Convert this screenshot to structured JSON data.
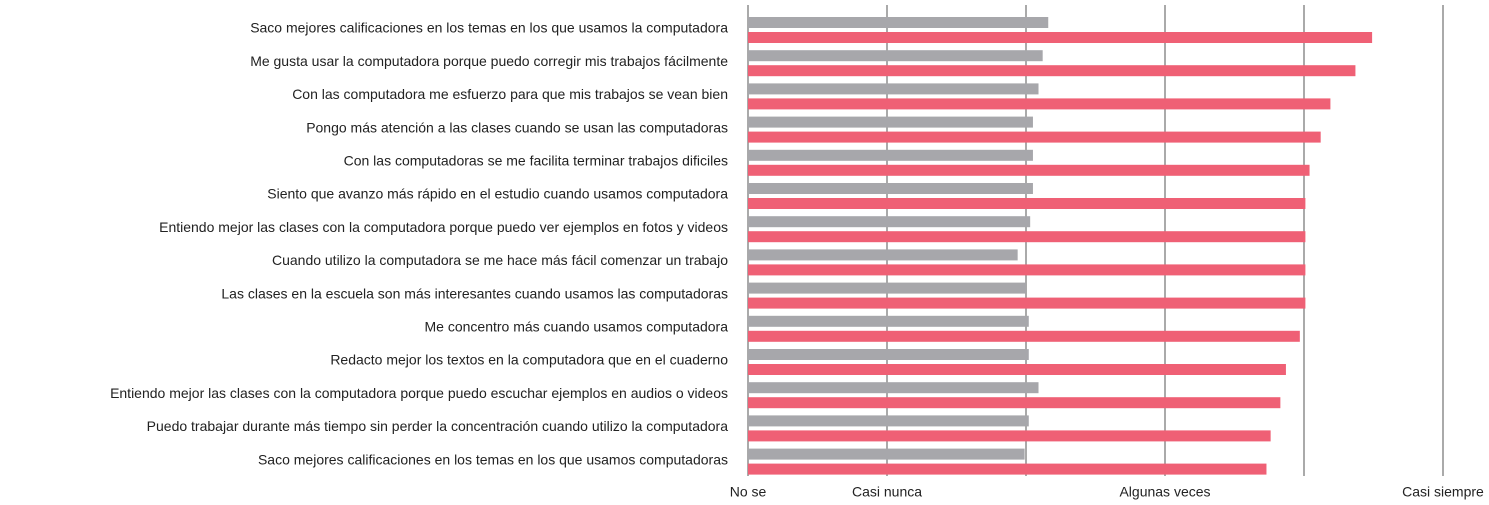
{
  "chart_data": {
    "type": "hbar",
    "categories": [
      "Saco mejores calificaciones en los temas en los que usamos la computadora",
      "Me gusta usar la computadora porque puedo corregir mis trabajos fácilmente",
      "Con las computadora me esfuerzo para que mis trabajos se vean bien",
      "Pongo más atención a las clases cuando se usan las computadoras",
      "Con las computadoras se me facilita terminar trabajos dificiles",
      "Siento que avanzo más rápido en el estudio cuando usamos computadora",
      "Entiendo mejor las clases con la computadora porque puedo ver ejemplos en fotos y videos",
      "Cuando utilizo la computadora se me hace más fácil comenzar un trabajo",
      "Las clases en la escuela son más interesantes cuando usamos las computadoras",
      "Me concentro más cuando usamos computadora",
      "Redacto mejor los textos en la computadora que en el cuaderno",
      "Entiendo mejor las clases con la computadora porque puedo escuchar ejemplos en audios o videos",
      "Puedo trabajar durante más tiempo sin perder la concentración cuando utilizo la computadora",
      "Saco mejores calificaciones en los temas en los que usamos computadoras"
    ],
    "series": [
      {
        "color": "#a7a7ab",
        "values": [
          2.16,
          2.12,
          2.09,
          2.05,
          2.05,
          2.05,
          2.03,
          1.94,
          2.0,
          2.02,
          2.02,
          2.09,
          2.02,
          1.99
        ]
      },
      {
        "color": "#ef6075",
        "values": [
          4.49,
          4.37,
          4.19,
          4.12,
          4.04,
          4.01,
          4.01,
          4.01,
          4.01,
          3.97,
          3.87,
          3.83,
          3.76,
          3.73
        ]
      }
    ],
    "xlim": [
      0,
      5
    ],
    "xticks": [
      {
        "value": 0,
        "label": "No se"
      },
      {
        "value": 1,
        "label": "Casi nunca"
      },
      {
        "value": 2,
        "label": null
      },
      {
        "value": 3,
        "label": "Algunas veces"
      },
      {
        "value": 4,
        "label": null
      },
      {
        "value": 5,
        "label": "Casi siempre"
      }
    ],
    "grid": true
  }
}
